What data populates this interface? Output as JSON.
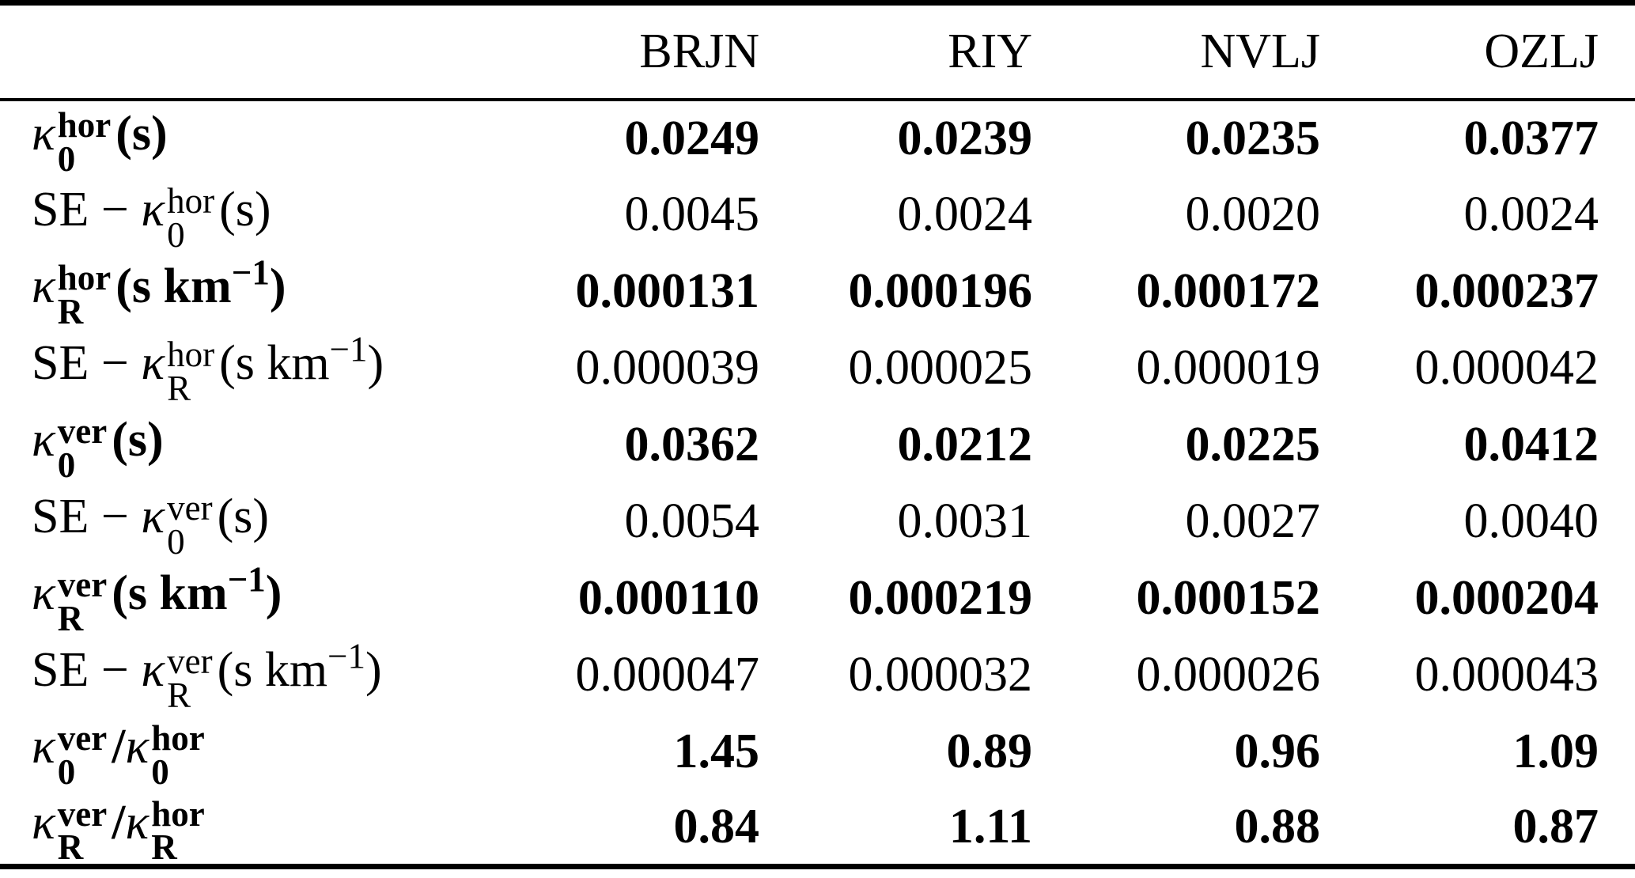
{
  "table": {
    "columns": [
      "BRJN",
      "RIY",
      "NVLJ",
      "OZLJ"
    ],
    "kappa_char": "κ",
    "rows": [
      {
        "name": "k0-hor",
        "bold": true,
        "label": [
          {
            "type": "kappa",
            "kappa": "κ",
            "sup": "hor",
            "sub": "0"
          },
          {
            "type": "text",
            "text": "(s)"
          }
        ],
        "values": [
          "0.0249",
          "0.0239",
          "0.0235",
          "0.0377"
        ]
      },
      {
        "name": "se-k0-hor",
        "bold": false,
        "label": [
          {
            "type": "text",
            "text": "SE − "
          },
          {
            "type": "kappa",
            "kappa": "κ",
            "sup": "hor",
            "sub": "0"
          },
          {
            "type": "text",
            "text": "(s)"
          }
        ],
        "values": [
          "0.0045",
          "0.0024",
          "0.0020",
          "0.0024"
        ]
      },
      {
        "name": "kR-hor",
        "bold": true,
        "label": [
          {
            "type": "kappa",
            "kappa": "κ",
            "sup": "hor",
            "sub": "R"
          },
          {
            "type": "text",
            "text": "(s km"
          },
          {
            "type": "sup",
            "text": "−1"
          },
          {
            "type": "text",
            "text": ")"
          }
        ],
        "values": [
          "0.000131",
          "0.000196",
          "0.000172",
          "0.000237"
        ]
      },
      {
        "name": "se-kR-hor",
        "bold": false,
        "label": [
          {
            "type": "text",
            "text": "SE − "
          },
          {
            "type": "kappa",
            "kappa": "κ",
            "sup": "hor",
            "sub": "R"
          },
          {
            "type": "text",
            "text": "(s km"
          },
          {
            "type": "sup",
            "text": "−1"
          },
          {
            "type": "text",
            "text": ")"
          }
        ],
        "values": [
          "0.000039",
          "0.000025",
          "0.000019",
          "0.000042"
        ]
      },
      {
        "name": "k0-ver",
        "bold": true,
        "label": [
          {
            "type": "kappa",
            "kappa": "κ",
            "sup": "ver",
            "sub": "0"
          },
          {
            "type": "text",
            "text": "(s)"
          }
        ],
        "values": [
          "0.0362",
          "0.0212",
          "0.0225",
          "0.0412"
        ]
      },
      {
        "name": "se-k0-ver",
        "bold": false,
        "label": [
          {
            "type": "text",
            "text": "SE − "
          },
          {
            "type": "kappa",
            "kappa": "κ",
            "sup": "ver",
            "sub": "0"
          },
          {
            "type": "text",
            "text": "(s)"
          }
        ],
        "values": [
          "0.0054",
          "0.0031",
          "0.0027",
          "0.0040"
        ]
      },
      {
        "name": "kR-ver",
        "bold": true,
        "label": [
          {
            "type": "kappa",
            "kappa": "κ",
            "sup": "ver",
            "sub": "R"
          },
          {
            "type": "text",
            "text": "(s km"
          },
          {
            "type": "sup",
            "text": "−1"
          },
          {
            "type": "text",
            "text": ")"
          }
        ],
        "values": [
          "0.000110",
          "0.000219",
          "0.000152",
          "0.000204"
        ]
      },
      {
        "name": "se-kR-ver",
        "bold": false,
        "label": [
          {
            "type": "text",
            "text": "SE − "
          },
          {
            "type": "kappa",
            "kappa": "κ",
            "sup": "ver",
            "sub": "R"
          },
          {
            "type": "text",
            "text": "(s km"
          },
          {
            "type": "sup",
            "text": "−1"
          },
          {
            "type": "text",
            "text": ")"
          }
        ],
        "values": [
          "0.000047",
          "0.000032",
          "0.000026",
          "0.000043"
        ]
      },
      {
        "name": "ratio-k0",
        "bold": true,
        "label": [
          {
            "type": "kappa",
            "kappa": "κ",
            "sup": "ver",
            "sub": "0"
          },
          {
            "type": "text",
            "text": "/"
          },
          {
            "type": "kappa",
            "kappa": "κ",
            "sup": "hor",
            "sub": "0"
          }
        ],
        "values": [
          "1.45",
          "0.89",
          "0.96",
          "1.09"
        ]
      },
      {
        "name": "ratio-kR",
        "bold": true,
        "label": [
          {
            "type": "kappa",
            "kappa": "κ",
            "sup": "ver",
            "sub": "R"
          },
          {
            "type": "text",
            "text": "/"
          },
          {
            "type": "kappa",
            "kappa": "κ",
            "sup": "hor",
            "sub": "R"
          }
        ],
        "values": [
          "0.84",
          "1.11",
          "0.88",
          "0.87"
        ]
      }
    ]
  }
}
